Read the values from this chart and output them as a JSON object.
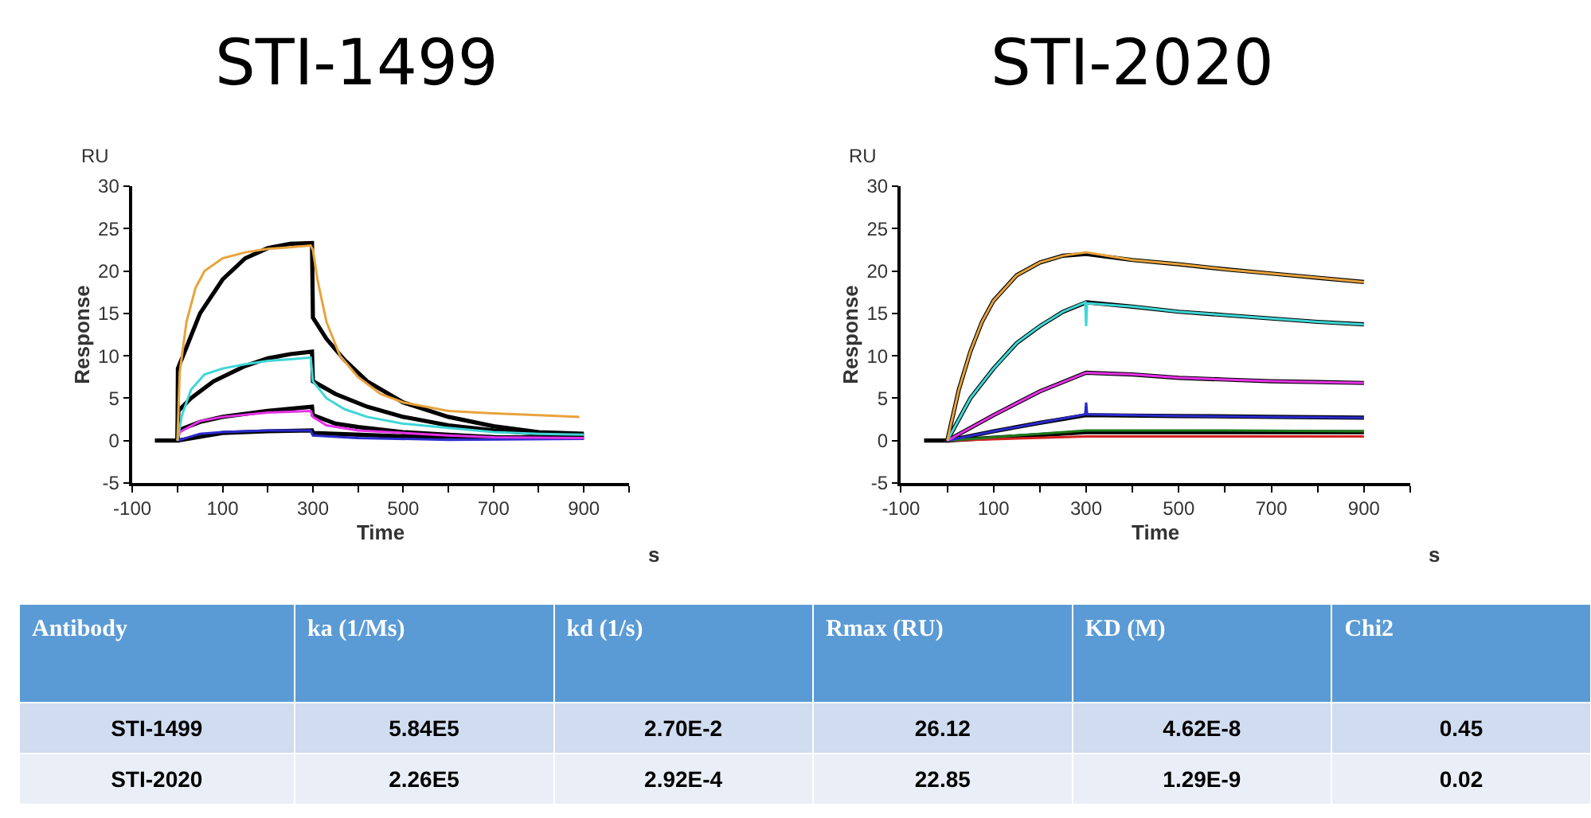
{
  "chart_data": [
    {
      "type": "line",
      "title": "STI-1499",
      "xlabel": "Time",
      "ylabel": "Response",
      "annotations": [
        "RU",
        "s"
      ],
      "xlim": [
        -100,
        1000
      ],
      "ylim": [
        -5,
        30
      ],
      "xticks": [
        -100,
        {
          "value": 0,
          "label": null
        },
        100,
        {
          "value": 200,
          "label": null
        },
        300,
        {
          "value": 400,
          "label": null
        },
        500,
        {
          "value": 600,
          "label": null
        },
        700,
        {
          "value": 800,
          "label": null
        },
        900,
        {
          "value": 1000,
          "label": null
        }
      ],
      "yticks": [
        -5,
        0,
        5,
        10,
        15,
        20,
        25,
        30
      ],
      "series": [
        {
          "color": "#e8a33c",
          "x": [
            0,
            5,
            20,
            40,
            60,
            100,
            150,
            200,
            250,
            295,
            300,
            310,
            330,
            360,
            400,
            450,
            500,
            600,
            700,
            800,
            890
          ],
          "values": [
            0,
            8,
            14,
            18,
            20,
            21.5,
            22.2,
            22.6,
            22.8,
            23,
            22.5,
            19,
            14,
            10,
            7.5,
            5.5,
            4.5,
            3.5,
            3.2,
            3,
            2.8
          ]
        },
        {
          "color": "#3fd6d6",
          "x": [
            0,
            10,
            30,
            60,
            100,
            150,
            200,
            250,
            295,
            300,
            330,
            370,
            420,
            500,
            600,
            700,
            800,
            900
          ],
          "values": [
            0,
            3,
            6,
            7.8,
            8.5,
            9,
            9.4,
            9.6,
            9.8,
            7,
            5,
            3.7,
            2.8,
            2,
            1.5,
            1,
            0.8,
            0.7
          ]
        },
        {
          "color": "#e632e6",
          "x": [
            0,
            5,
            50,
            100,
            200,
            295,
            300,
            330,
            400,
            500,
            600,
            700,
            900
          ],
          "values": [
            0,
            1,
            2.3,
            2.8,
            3.3,
            3.5,
            2.8,
            1.8,
            1.2,
            0.9,
            0.6,
            0.4,
            0.3
          ]
        },
        {
          "color": "#2a2acc",
          "x": [
            0,
            50,
            100,
            200,
            295,
            300,
            400,
            600,
            900
          ],
          "values": [
            0,
            0.8,
            1,
            1.2,
            1.2,
            0.6,
            0.3,
            0.1,
            0.2
          ]
        },
        {
          "color": "#000000",
          "x": [
            -50,
            0,
            1,
            20,
            50,
            100,
            150,
            200,
            250,
            298,
            300,
            330,
            370,
            420,
            500,
            600,
            700,
            800,
            900
          ],
          "values": [
            0,
            0,
            8.5,
            11,
            15,
            19,
            21.5,
            22.7,
            23.2,
            23.3,
            14.5,
            12,
            9.5,
            7,
            4.5,
            2.8,
            1.7,
            1,
            0.8
          ]
        },
        {
          "color": "#000000",
          "x": [
            0,
            2,
            30,
            80,
            150,
            200,
            250,
            298,
            300,
            350,
            420,
            500,
            600,
            700,
            800,
            900
          ],
          "values": [
            0,
            3.5,
            5,
            7,
            8.8,
            9.7,
            10.2,
            10.5,
            7,
            5.5,
            4,
            2.8,
            1.8,
            1.2,
            0.8,
            0.6
          ]
        },
        {
          "color": "#000000",
          "x": [
            0,
            2,
            50,
            100,
            200,
            298,
            300,
            350,
            400,
            500,
            600,
            700,
            900
          ],
          "values": [
            0,
            1.2,
            2.2,
            2.8,
            3.5,
            4,
            3,
            2,
            1.6,
            1,
            0.7,
            0.4,
            0.3
          ]
        },
        {
          "color": "#000000",
          "x": [
            0,
            100,
            200,
            298,
            300,
            500,
            900
          ],
          "values": [
            0,
            0.9,
            1.1,
            1.2,
            0.9,
            0.5,
            0.3
          ]
        }
      ]
    },
    {
      "type": "line",
      "title": "STI-2020",
      "xlabel": "Time",
      "ylabel": "Response",
      "annotations": [
        "RU",
        "s"
      ],
      "xlim": [
        -100,
        1000
      ],
      "ylim": [
        -5,
        30
      ],
      "xticks": [
        -100,
        {
          "value": 0,
          "label": null
        },
        100,
        {
          "value": 200,
          "label": null
        },
        300,
        {
          "value": 400,
          "label": null
        },
        500,
        {
          "value": 600,
          "label": null
        },
        700,
        {
          "value": 800,
          "label": null
        },
        900,
        {
          "value": 1000,
          "label": null
        }
      ],
      "yticks": [
        -5,
        0,
        5,
        10,
        15,
        20,
        25,
        30
      ],
      "series": [
        {
          "color": "#e8a33c",
          "x": [
            0,
            25,
            50,
            75,
            100,
            150,
            200,
            250,
            300,
            400,
            500,
            600,
            700,
            800,
            900
          ],
          "values": [
            0,
            6,
            10.5,
            14,
            16.5,
            19.5,
            21,
            21.8,
            22.2,
            21.3,
            20.8,
            20.2,
            19.7,
            19.2,
            18.7
          ]
        },
        {
          "color": "#3fd6d6",
          "x": [
            0,
            50,
            100,
            150,
            200,
            250,
            298,
            300,
            302,
            400,
            500,
            600,
            700,
            800,
            900
          ],
          "values": [
            0,
            5,
            8.5,
            11.5,
            13.5,
            15.2,
            16.3,
            13.5,
            16.2,
            15.8,
            15.2,
            14.8,
            14.4,
            14,
            13.7
          ]
        },
        {
          "color": "#e632e6",
          "x": [
            0,
            100,
            200,
            300,
            400,
            500,
            600,
            700,
            800,
            900
          ],
          "values": [
            0,
            3,
            5.8,
            8,
            7.8,
            7.4,
            7.2,
            7,
            6.9,
            6.8
          ]
        },
        {
          "color": "#2a2acc",
          "x": [
            0,
            100,
            200,
            298,
            300,
            302,
            500,
            700,
            900
          ],
          "values": [
            0,
            1.1,
            2.1,
            3.1,
            4.5,
            3.1,
            2.9,
            2.8,
            2.7
          ]
        },
        {
          "color": "#1f7a1f",
          "x": [
            0,
            150,
            300,
            600,
            900
          ],
          "values": [
            0,
            0.6,
            1.2,
            1.2,
            1.1
          ]
        },
        {
          "color": "#d62020",
          "x": [
            0,
            300,
            900
          ],
          "values": [
            0,
            0.5,
            0.5
          ]
        },
        {
          "color": "#000000",
          "x": [
            -50,
            0,
            25,
            50,
            75,
            100,
            150,
            200,
            250,
            300,
            400,
            500,
            600,
            700,
            800,
            900
          ],
          "values": [
            0,
            0,
            6,
            10.5,
            14,
            16.5,
            19.5,
            21,
            21.8,
            22,
            21.3,
            20.8,
            20.2,
            19.7,
            19.2,
            18.7
          ]
        },
        {
          "color": "#000000",
          "x": [
            0,
            50,
            100,
            150,
            200,
            250,
            300,
            400,
            500,
            600,
            700,
            800,
            900
          ],
          "values": [
            0,
            5,
            8.5,
            11.5,
            13.5,
            15.2,
            16.3,
            15.8,
            15.2,
            14.8,
            14.4,
            14,
            13.7
          ]
        },
        {
          "color": "#000000",
          "x": [
            0,
            100,
            200,
            300,
            400,
            500,
            600,
            700,
            800,
            900
          ],
          "values": [
            0,
            3,
            5.8,
            8,
            7.8,
            7.4,
            7.2,
            7,
            6.9,
            6.8
          ]
        },
        {
          "color": "#000000",
          "x": [
            0,
            100,
            200,
            300,
            500,
            700,
            900
          ],
          "values": [
            0,
            1.1,
            2.1,
            3,
            2.9,
            2.8,
            2.7
          ]
        },
        {
          "color": "#000000",
          "x": [
            0,
            150,
            300,
            600,
            900
          ],
          "values": [
            0,
            0.5,
            1,
            1,
            1
          ]
        }
      ]
    },
    {
      "type": "other",
      "categories": [
        "Antibody",
        "ka (1/Ms)",
        "kd (1/s)",
        "Rmax (RU)",
        "KD (M)",
        "Chi2"
      ],
      "cell_labels": [
        [
          "STI-1499",
          "5.84E5",
          "2.70E-2",
          "26.12",
          "4.62E-8",
          "0.45"
        ],
        [
          "STI-2020",
          "2.26E5",
          "2.92E-4",
          "22.85",
          "1.29E-9",
          "0.02"
        ]
      ]
    }
  ]
}
